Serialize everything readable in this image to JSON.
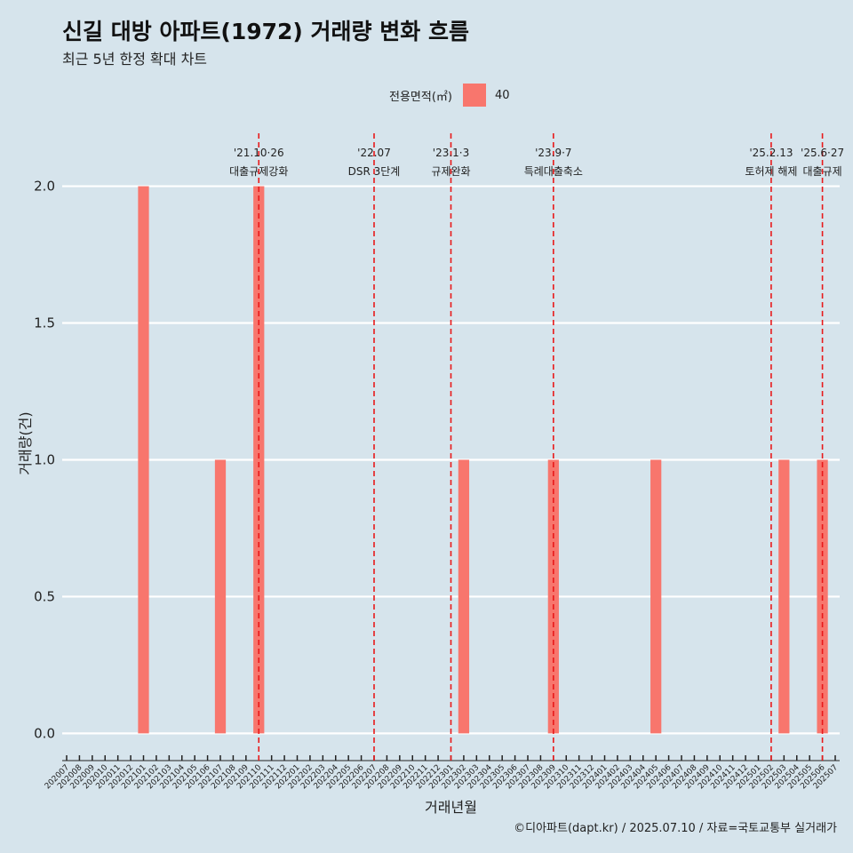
{
  "title": "신길 대방 아파트(1972) 거래량 변화 흐름",
  "subtitle": "최근 5년 한정 확대 차트",
  "caption": "©디아파트(dapt.kr) / 2025.07.10 / 자료=국토교통부 실거래가",
  "legend": {
    "title": "전용면적(㎡)",
    "entries": [
      "40"
    ]
  },
  "colors": {
    "bar": "#f8766d",
    "event_line": "#e8191a",
    "background": "#d6e4ec",
    "grid": "#ffffff"
  },
  "chart_data": {
    "type": "bar",
    "xlabel": "거래년월",
    "ylabel": "거래량(건)",
    "ylim": [
      -0.08,
      2.2
    ],
    "yticks": [
      "0.0",
      "0.5",
      "1.0",
      "1.5",
      "2.0"
    ],
    "grid": true,
    "legend_position": "top",
    "categories": [
      "202007",
      "202008",
      "202009",
      "202010",
      "202011",
      "202012",
      "202101",
      "202102",
      "202103",
      "202104",
      "202105",
      "202106",
      "202107",
      "202108",
      "202109",
      "202110",
      "202111",
      "202112",
      "202201",
      "202202",
      "202203",
      "202204",
      "202205",
      "202206",
      "202207",
      "202208",
      "202209",
      "202210",
      "202211",
      "202212",
      "202301",
      "202302",
      "202303",
      "202304",
      "202305",
      "202306",
      "202307",
      "202308",
      "202309",
      "202310",
      "202311",
      "202312",
      "202401",
      "202402",
      "202403",
      "202404",
      "202405",
      "202406",
      "202407",
      "202408",
      "202409",
      "202410",
      "202411",
      "202412",
      "202501",
      "202502",
      "202503",
      "202504",
      "202505",
      "202506",
      "202507"
    ],
    "series": [
      {
        "name": "40",
        "values": [
          0,
          0,
          0,
          0,
          0,
          0,
          2,
          0,
          0,
          0,
          0,
          0,
          1,
          0,
          0,
          2,
          0,
          0,
          0,
          0,
          0,
          0,
          0,
          0,
          0,
          0,
          0,
          0,
          0,
          0,
          0,
          1,
          0,
          0,
          0,
          0,
          0,
          0,
          1,
          0,
          0,
          0,
          0,
          0,
          0,
          0,
          1,
          0,
          0,
          0,
          0,
          0,
          0,
          0,
          0,
          0,
          1,
          0,
          0,
          1,
          0
        ]
      }
    ],
    "events": [
      {
        "month": "2021-10",
        "date_label": "'21.10·26",
        "label": "대출규제강화"
      },
      {
        "month": "2022-07",
        "date_label": "'22.07",
        "label": "DSR 3단계"
      },
      {
        "month": "2023-01",
        "date_label": "'23.1·3",
        "label": "규제완화"
      },
      {
        "month": "2023-09",
        "date_label": "'23.9·7",
        "label": "특례대출축소"
      },
      {
        "month": "2025-02",
        "date_label": "'25.2.13",
        "label": "토허제 해제"
      },
      {
        "month": "2025-06",
        "date_label": "'25.6·27",
        "label": "대출규제"
      }
    ]
  }
}
